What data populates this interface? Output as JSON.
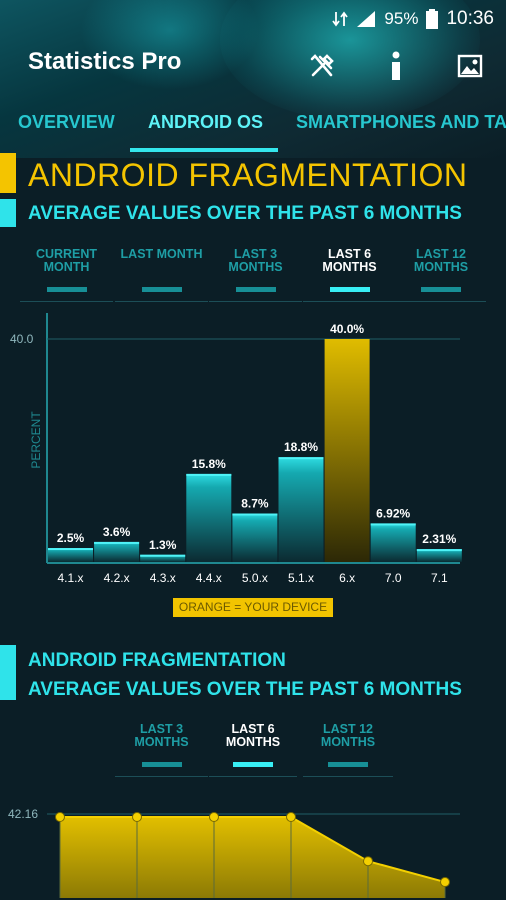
{
  "status": {
    "battery": "95%",
    "time": "10:36"
  },
  "app": {
    "title": "Statistics Pro"
  },
  "tabs": [
    "OVERVIEW",
    "ANDROID OS",
    "SMARTPHONES AND TA"
  ],
  "section1": {
    "title": "ANDROID FRAGMENTATION",
    "subtitle": "AVERAGE VALUES OVER THE PAST 6 MONTHS",
    "ranges": [
      {
        "l1": "CURRENT",
        "l2": "MONTH"
      },
      {
        "l1": "LAST MONTH",
        "l2": ""
      },
      {
        "l1": "LAST 3",
        "l2": "MONTHS"
      },
      {
        "l1": "LAST 6",
        "l2": "MONTHS"
      },
      {
        "l1": "LAST 12",
        "l2": "MONTHS"
      }
    ],
    "legend": "ORANGE = YOUR DEVICE"
  },
  "section2": {
    "title": "ANDROID FRAGMENTATION",
    "subtitle": "AVERAGE VALUES OVER THE PAST 6 MONTHS",
    "ranges": [
      {
        "l1": "LAST 3",
        "l2": "MONTHS"
      },
      {
        "l1": "LAST 6",
        "l2": "MONTHS"
      },
      {
        "l1": "LAST 12",
        "l2": "MONTHS"
      }
    ]
  },
  "colors": {
    "accent": "#2fe3ea",
    "title": "#f4c400",
    "device": "#d4b000",
    "background": "#0b1e26"
  },
  "chart_data": [
    {
      "type": "bar",
      "ylabel": "PERCENT",
      "ylim": [
        0,
        40.0
      ],
      "ytick": "40.0",
      "categories": [
        "4.1.x",
        "4.2.x",
        "4.3.x",
        "4.4.x",
        "5.0.x",
        "5.1.x",
        "6.x",
        "7.0",
        "7.1"
      ],
      "values": [
        2.5,
        3.6,
        1.3,
        15.8,
        8.7,
        18.8,
        40.0,
        6.92,
        2.31
      ],
      "value_labels": [
        "2.5%",
        "3.6%",
        "1.3%",
        "15.8%",
        "8.7%",
        "18.8%",
        "40.0%",
        "6.92%",
        "2.31%"
      ],
      "highlight_index": 6
    },
    {
      "type": "area",
      "ytick": "42.16",
      "ylim": [
        0,
        42.16
      ],
      "values": [
        42.16,
        42.16,
        42.16,
        42.16,
        30.5,
        25.0
      ]
    }
  ]
}
